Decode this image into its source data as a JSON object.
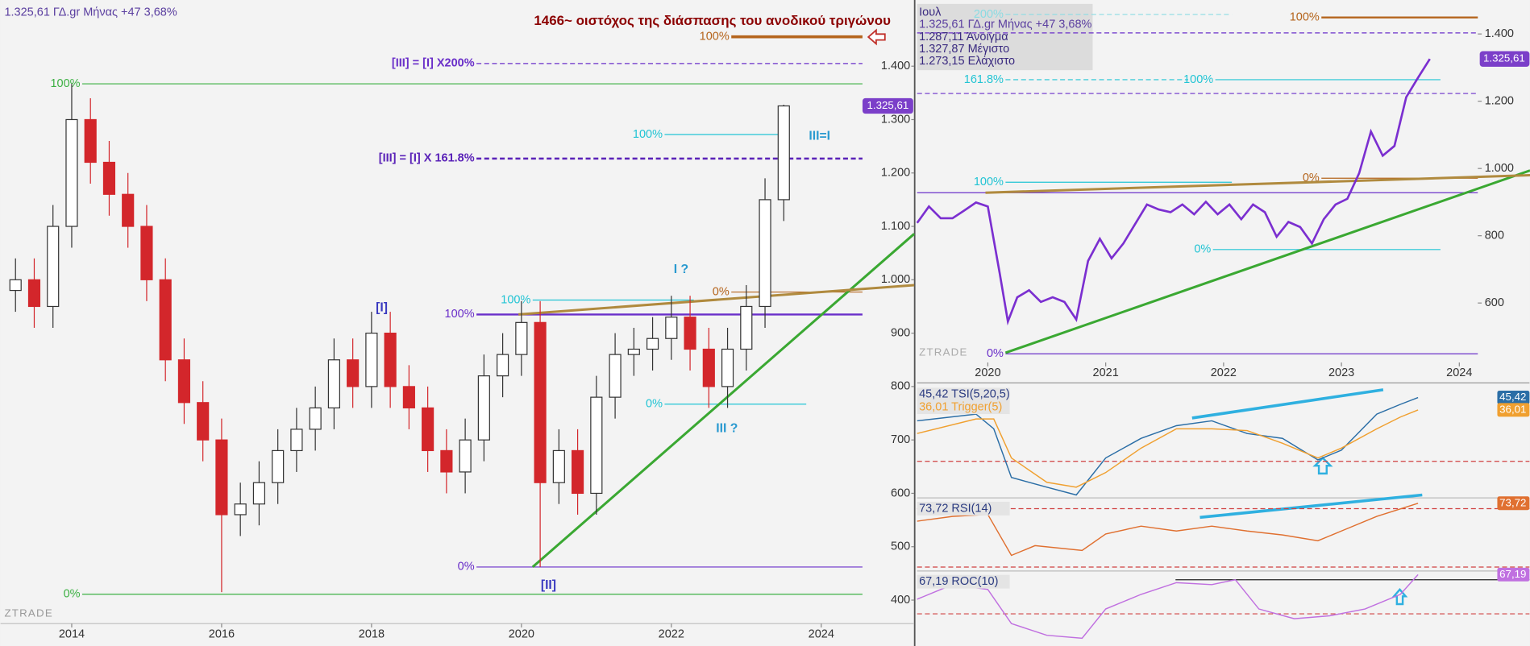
{
  "chart_data": [
    {
      "type": "candlestick",
      "title": "1466~ οιστόχος της διάσπασης του ανοδικού τριγώνου",
      "subtitle": "1.325,61 ΓΔ.gr Μήνας +47 3,68%",
      "price_tag": "1.325,61",
      "watermark": "ZTRADE",
      "x": [
        2013.25,
        2013.5,
        2013.75,
        2014,
        2014.25,
        2014.5,
        2014.75,
        2015,
        2015.25,
        2015.5,
        2015.75,
        2016,
        2016.25,
        2016.5,
        2016.75,
        2017,
        2017.25,
        2017.5,
        2017.75,
        2018,
        2018.25,
        2018.5,
        2018.75,
        2019,
        2019.25,
        2019.5,
        2019.75,
        2020,
        2020.25,
        2020.5,
        2020.75,
        2021,
        2021.25,
        2021.5,
        2021.75,
        2022,
        2022.25,
        2022.5,
        2022.75,
        2023,
        2023.25,
        2023.5
      ],
      "open": [
        980,
        1000,
        950,
        1100,
        1300,
        1220,
        1160,
        1100,
        1000,
        850,
        770,
        700,
        560,
        580,
        620,
        680,
        720,
        760,
        850,
        800,
        900,
        800,
        760,
        680,
        640,
        700,
        820,
        860,
        920,
        620,
        680,
        600,
        780,
        860,
        870,
        890,
        930,
        870,
        800,
        870,
        950,
        1150
      ],
      "high": [
        1040,
        1040,
        1140,
        1367,
        1340,
        1260,
        1200,
        1140,
        1040,
        890,
        810,
        740,
        620,
        660,
        720,
        760,
        800,
        890,
        890,
        940,
        940,
        840,
        800,
        720,
        740,
        860,
        900,
        960,
        960,
        720,
        720,
        820,
        900,
        910,
        930,
        970,
        970,
        910,
        910,
        990,
        1190,
        1327.87
      ],
      "low": [
        940,
        910,
        910,
        1060,
        1180,
        1120,
        1060,
        960,
        810,
        730,
        660,
        415,
        520,
        540,
        580,
        640,
        680,
        720,
        760,
        760,
        760,
        720,
        640,
        600,
        600,
        660,
        780,
        820,
        462,
        580,
        560,
        560,
        740,
        820,
        830,
        850,
        830,
        760,
        760,
        830,
        910,
        1110
      ],
      "close": [
        1000,
        950,
        1100,
        1300,
        1220,
        1160,
        1100,
        1000,
        850,
        770,
        700,
        560,
        580,
        620,
        680,
        720,
        760,
        850,
        800,
        900,
        800,
        760,
        680,
        640,
        700,
        820,
        860,
        920,
        620,
        680,
        600,
        780,
        860,
        870,
        890,
        930,
        870,
        800,
        870,
        950,
        1150,
        1325.61
      ],
      "up_color": "#ffffff",
      "down_color": "#d3262b",
      "xlim": [
        2013.05,
        2025.24
      ],
      "ylim": [
        356,
        1524
      ],
      "xticks": [
        2014,
        2016,
        2018,
        2020,
        2022,
        2024
      ],
      "yticks": [
        {
          "value": 1400,
          "label": "1.400"
        },
        {
          "value": 1300,
          "label": "1.300"
        },
        {
          "value": 1200,
          "label": "1.200"
        },
        {
          "value": 1100,
          "label": "1.100"
        },
        {
          "value": 1000,
          "label": "1.000"
        },
        900,
        800,
        700,
        600,
        500,
        400
      ],
      "levels": [
        {
          "label": "100%",
          "value": 1367,
          "color": "#3cb043",
          "x": [
            2014.14,
            2024.55
          ]
        },
        {
          "label": "0%",
          "value": 411,
          "color": "#3cb043",
          "x": [
            2014.14,
            2024.55
          ]
        },
        {
          "label": "100%",
          "value": 935,
          "color": "#6a2fc9",
          "x": [
            2019.4,
            2024.55
          ],
          "width": 2
        },
        {
          "label": "0%",
          "value": 462,
          "color": "#6a2fc9",
          "x": [
            2019.4,
            2024.55
          ]
        },
        {
          "label": "[III] = [I] X200%",
          "value": 1405,
          "color": "#6a2fc9",
          "x": [
            2019.4,
            2024.55
          ],
          "dash": true
        },
        {
          "label": "[III] = [I] X 161.8%",
          "value": 1227,
          "color": "#5a22b8",
          "x": [
            2019.4,
            2024.55
          ],
          "dash": true,
          "width": 2
        },
        {
          "label": "100%",
          "value": 962,
          "color": "#22c4d4",
          "x": [
            2020.15,
            2022.3
          ]
        },
        {
          "label": "0%",
          "value": 767,
          "color": "#22c4d4",
          "x": [
            2021.91,
            2023.8
          ]
        },
        {
          "label": "100%",
          "value": 1272,
          "color": "#22c4d4",
          "x": [
            2021.91,
            2023.48
          ]
        },
        {
          "label": "100%",
          "value": 1455,
          "color": "#b5651d",
          "x": [
            2022.8,
            2024.55
          ],
          "width": 3
        },
        {
          "label": "0%",
          "value": 977,
          "color": "#b5651d",
          "x": [
            2022.8,
            2024.55
          ]
        }
      ],
      "trendlines": [
        {
          "color": "#3aa832",
          "x": [
            2020.15,
            2025.24
          ],
          "values": [
            462,
            1086
          ]
        },
        {
          "color": "#b08a3e",
          "x": [
            2019.96,
            2025.24
          ],
          "values": [
            935,
            990
          ]
        }
      ],
      "annotations": [
        "[I]",
        "[II]",
        "I ?",
        "III ?",
        "III=I"
      ]
    },
    {
      "type": "line",
      "header": [
        "Ιουλ",
        "1.325,61 ΓΔ.gr Μήνας +47 3,68%",
        "1.287,11 Άνοιγμα",
        "1.327,87 Μέγιστο",
        "1.273,15 Ελάχιστο"
      ],
      "price_tag": "1.325,61",
      "watermark": "ZTRADE",
      "x": [
        2019.4,
        2019.5,
        2019.6,
        2019.7,
        2019.8,
        2019.9,
        2020.0,
        2020.1,
        2020.17,
        2020.25,
        2020.35,
        2020.45,
        2020.55,
        2020.65,
        2020.75,
        2020.85,
        2020.95,
        2021.05,
        2021.15,
        2021.25,
        2021.35,
        2021.45,
        2021.55,
        2021.65,
        2021.75,
        2021.85,
        2021.95,
        2022.05,
        2022.15,
        2022.25,
        2022.35,
        2022.45,
        2022.55,
        2022.65,
        2022.75,
        2022.85,
        2022.95,
        2023.05,
        2023.15,
        2023.25,
        2023.35,
        2023.45,
        2023.55,
        2023.65,
        2023.75
      ],
      "series": [
        {
          "color": "#7b2fd0",
          "values": [
            838,
            887,
            852,
            852,
            875,
            899,
            887,
            690,
            545,
            617,
            638,
            603,
            617,
            603,
            551,
            725,
            791,
            733,
            777,
            835,
            893,
            878,
            870,
            893,
            864,
            901,
            864,
            893,
            849,
            893,
            870,
            797,
            841,
            826,
            777,
            849,
            893,
            910,
            986,
            1110,
            1038,
            1067,
            1212,
            1270,
            1325.61
          ]
        }
      ],
      "xlim": [
        2019.4,
        2024.157
      ],
      "ylim": [
        429,
        1501
      ],
      "xticks": [
        2020,
        2021,
        2022,
        2023,
        2024
      ],
      "yticks": [
        {
          "value": 1400,
          "label": "1.400"
        },
        {
          "value": 1200,
          "label": "1.200"
        },
        {
          "value": 1000,
          "label": "1.000"
        },
        800,
        600
      ],
      "levels": [
        {
          "label": "200%",
          "value": 1458,
          "color": "#8adbe3",
          "x": [
            2020.15,
            2022.07
          ],
          "dash": true
        },
        {
          "label": "100%",
          "value": 1449,
          "color": "#b5651d",
          "x": [
            2022.83,
            2024.157
          ],
          "width": 2
        },
        {
          "value": 1403,
          "color": "#6a2fc9",
          "x": [
            2019.4,
            2024.157
          ],
          "dash": true
        },
        {
          "label": "161.8%",
          "value": 1264,
          "color": "#22c4d4",
          "x": [
            2020.15,
            2021.7
          ],
          "dash": true
        },
        {
          "label": "100%",
          "value": 1264,
          "color": "#22c4d4",
          "x": [
            2021.93,
            2023.84
          ]
        },
        {
          "value": 1223,
          "color": "#6a2fc9",
          "x": [
            2019.4,
            2024.157
          ],
          "dash": true
        },
        {
          "label": "100%",
          "value": 959,
          "color": "#22c4d4",
          "x": [
            2020.15,
            2022.07
          ]
        },
        {
          "label": "0%",
          "value": 971,
          "color": "#b5651d",
          "x": [
            2022.83,
            2024.157
          ]
        },
        {
          "label": "0%",
          "value": 759,
          "color": "#22c4d4",
          "x": [
            2021.91,
            2023.84
          ]
        },
        {
          "value": 928,
          "color": "#6a2fc9",
          "x": [
            2019.4,
            2024.157
          ]
        },
        {
          "label": "0%",
          "value": 449,
          "color": "#6a2fc9",
          "x": [
            2020.15,
            2024.157
          ]
        }
      ],
      "trendlines": [
        {
          "color": "#3aa832",
          "x": [
            2020.15,
            2024.6
          ],
          "values": [
            452,
            994
          ]
        },
        {
          "color": "#b08a3e",
          "x": [
            2019.98,
            2024.6
          ],
          "values": [
            928,
            980
          ]
        }
      ]
    },
    {
      "type": "line",
      "x": [
        2019.4,
        2019.9,
        2020.05,
        2020.2,
        2020.5,
        2020.75,
        2021.0,
        2021.3,
        2021.6,
        2021.9,
        2022.2,
        2022.5,
        2022.8,
        2023.0,
        2023.3,
        2023.5,
        2023.65
      ],
      "series": [
        {
          "name": "45,42 TSI(5,20,5)",
          "tag": "45,42",
          "color": "#2b6ea6",
          "values": [
            27.7,
            32.8,
            21.7,
            -15.2,
            -22.6,
            -28.5,
            -0.4,
            14.4,
            24.0,
            27.7,
            18.1,
            14.4,
            -1.9,
            5.5,
            32.8,
            40.2,
            45.42
          ]
        },
        {
          "name": "36,01 Trigger(5)",
          "tag": "36,01",
          "color": "#f0a030",
          "values": [
            18.1,
            29.1,
            29.1,
            -0.4,
            -18.9,
            -22.6,
            -11.5,
            7.0,
            21.7,
            21.7,
            20.3,
            10.7,
            -0.4,
            7.0,
            21.7,
            30.6,
            36.01
          ]
        }
      ],
      "xlim": [
        2019.4,
        2024.157
      ],
      "ylim": [
        -30,
        55
      ],
      "ref_lines": [
        -3
      ]
    },
    {
      "type": "line",
      "x": [
        2019.4,
        2019.7,
        2020.0,
        2020.2,
        2020.4,
        2020.8,
        2021.0,
        2021.3,
        2021.6,
        2021.9,
        2022.2,
        2022.5,
        2022.8,
        2023.0,
        2023.3,
        2023.65
      ],
      "series": [
        {
          "name": "73,72 RSI(14)",
          "tag": "73,72",
          "color": "#e07030",
          "values": [
            61.4,
            64.7,
            66,
            38,
            44.7,
            41.4,
            52.7,
            58,
            54.7,
            58,
            54.7,
            52,
            48,
            54.7,
            64.7,
            73.72
          ]
        }
      ],
      "xlim": [
        2019.4,
        2024.157
      ],
      "ylim": [
        28,
        76.7
      ],
      "ref_lines": [
        70,
        30
      ]
    },
    {
      "type": "line",
      "x": [
        2019.4,
        2019.7,
        2020.0,
        2020.2,
        2020.5,
        2020.8,
        2021.0,
        2021.3,
        2021.6,
        2021.9,
        2022.1,
        2022.3,
        2022.6,
        2022.9,
        2023.2,
        2023.5,
        2023.65
      ],
      "series": [
        {
          "name": "67,19 ROC(10)",
          "tag": "67,19",
          "color": "#c070e0",
          "values": [
            25,
            50,
            41.7,
            -16.7,
            -36.7,
            -41.7,
            8.3,
            33.3,
            53.3,
            50,
            58.3,
            8.3,
            -8.3,
            -3.3,
            8.3,
            33.3,
            67.19
          ]
        }
      ],
      "xlim": [
        2019.4,
        2024.157
      ],
      "ylim": [
        -50,
        70
      ],
      "ref_lines": [
        0
      ]
    }
  ]
}
